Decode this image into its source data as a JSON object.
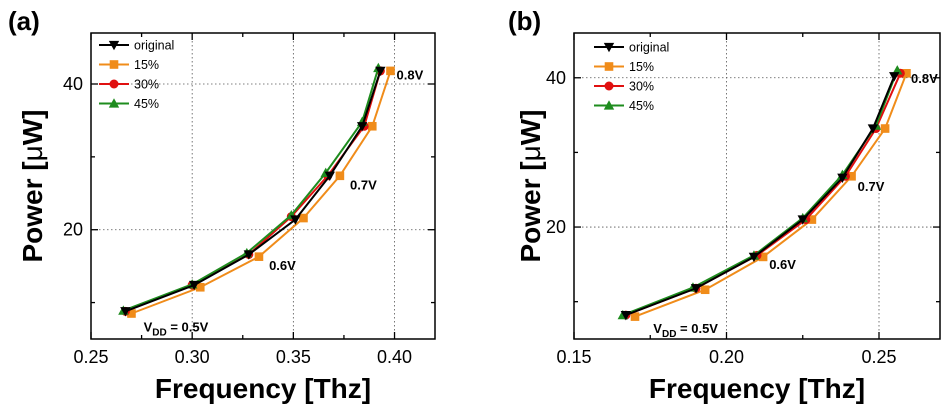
{
  "colors": {
    "original": "#000000",
    "15%": "#f08c1a",
    "30%": "#e01010",
    "45%": "#1e8c1e"
  },
  "chart_data": [
    {
      "type": "line",
      "panel_label": "(a)",
      "xlabel": "Frequency [Thz]",
      "ylabel_prefix": "Power [",
      "ylabel_mu": "μ",
      "ylabel_suffix": "W]",
      "xlim": [
        0.25,
        0.42
      ],
      "ylim": [
        5,
        47
      ],
      "xticks": [
        0.25,
        0.3,
        0.35,
        0.4
      ],
      "xtick_labels": [
        "0.25",
        "0.30",
        "0.35",
        "0.40"
      ],
      "yticks": [
        20,
        40
      ],
      "ytick_labels": [
        "20",
        "40"
      ],
      "grid": true,
      "legend_position": "top-left",
      "series": [
        {
          "name": "original",
          "color_key": "original",
          "marker": "triangle-down",
          "x": [
            0.267,
            0.301,
            0.328,
            0.351,
            0.368,
            0.384,
            0.393
          ],
          "y": [
            8.8,
            12.4,
            16.6,
            21.4,
            27.4,
            34.2,
            41.8
          ]
        },
        {
          "name": "15%",
          "color_key": "15%",
          "marker": "square",
          "x": [
            0.27,
            0.304,
            0.333,
            0.355,
            0.373,
            0.389,
            0.398
          ],
          "y": [
            8.5,
            12.1,
            16.3,
            21.6,
            27.4,
            34.2,
            41.8
          ]
        },
        {
          "name": "30%",
          "color_key": "30%",
          "marker": "circle",
          "x": [
            0.267,
            0.3,
            0.328,
            0.349,
            0.367,
            0.385,
            0.393
          ],
          "y": [
            8.8,
            12.4,
            16.6,
            21.8,
            27.4,
            34.2,
            41.8
          ]
        },
        {
          "name": "45%",
          "color_key": "45%",
          "marker": "triangle-up",
          "x": [
            0.266,
            0.3,
            0.327,
            0.349,
            0.366,
            0.384,
            0.392
          ],
          "y": [
            8.9,
            12.5,
            16.8,
            22.0,
            27.8,
            34.8,
            42.2
          ]
        }
      ],
      "annotations": [
        {
          "text": "0.8V",
          "x": 0.401,
          "y": 40.6
        },
        {
          "text": "0.7V",
          "x": 0.378,
          "y": 25.5
        },
        {
          "text": "0.6V",
          "x": 0.338,
          "y": 14.5
        },
        {
          "text_main": "V",
          "text_sub": "DD",
          "text_rest": " = 0.5V",
          "x": 0.276,
          "y": 6.0
        }
      ]
    },
    {
      "type": "line",
      "panel_label": "(b)",
      "xlabel": "Frequency [Thz]",
      "ylabel_prefix": "Power [",
      "ylabel_mu": "μ",
      "ylabel_suffix": "W]",
      "xlim": [
        0.15,
        0.27
      ],
      "ylim": [
        5,
        46
      ],
      "xticks": [
        0.15,
        0.2,
        0.25
      ],
      "xtick_labels": [
        "0.15",
        "0.20",
        "0.25"
      ],
      "yticks": [
        20,
        40
      ],
      "ytick_labels": [
        "20",
        "40"
      ],
      "grid": true,
      "legend_position": "top-left",
      "series": [
        {
          "name": "original",
          "color_key": "original",
          "marker": "triangle-down",
          "x": [
            0.167,
            0.19,
            0.209,
            0.225,
            0.238,
            0.248,
            0.255
          ],
          "y": [
            8.2,
            11.8,
            16.0,
            21.0,
            26.6,
            33.2,
            40.2
          ]
        },
        {
          "name": "15%",
          "color_key": "15%",
          "marker": "square",
          "x": [
            0.17,
            0.193,
            0.212,
            0.228,
            0.241,
            0.252,
            0.259
          ],
          "y": [
            8.0,
            11.6,
            16.0,
            21.0,
            26.8,
            33.2,
            40.6
          ]
        },
        {
          "name": "30%",
          "color_key": "30%",
          "marker": "circle",
          "x": [
            0.167,
            0.19,
            0.21,
            0.226,
            0.239,
            0.249,
            0.257
          ],
          "y": [
            8.2,
            11.8,
            16.2,
            21.0,
            26.8,
            33.2,
            40.6
          ]
        },
        {
          "name": "45%",
          "color_key": "45%",
          "marker": "triangle-up",
          "x": [
            0.166,
            0.189,
            0.209,
            0.225,
            0.238,
            0.249,
            0.256
          ],
          "y": [
            8.2,
            11.9,
            16.2,
            21.2,
            27.0,
            33.6,
            41.0
          ]
        }
      ],
      "annotations": [
        {
          "text": "0.8V",
          "x": 0.2605,
          "y": 39.3
        },
        {
          "text": "0.7V",
          "x": 0.243,
          "y": 24.8
        },
        {
          "text": "0.6V",
          "x": 0.214,
          "y": 14.4
        },
        {
          "text_main": "V",
          "text_sub": "DD",
          "text_rest": " = 0.5V",
          "x": 0.176,
          "y": 5.8
        }
      ]
    }
  ]
}
